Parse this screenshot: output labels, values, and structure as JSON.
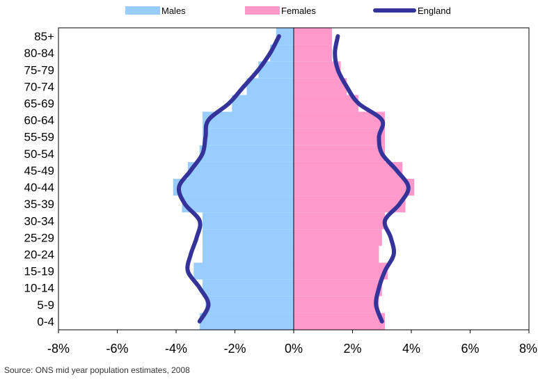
{
  "chart_data": {
    "type": "bar",
    "orientation": "horizontal",
    "categories": [
      "0-4",
      "5-9",
      "10-14",
      "15-19",
      "20-24",
      "25-29",
      "30-34",
      "35-39",
      "40-44",
      "45-49",
      "50-54",
      "55-59",
      "60-64",
      "65-69",
      "70-74",
      "75-79",
      "80-84",
      "85+"
    ],
    "series": [
      {
        "name": "Males",
        "type": "bar",
        "color": "#99ccff",
        "values": [
          -3.2,
          -3.0,
          -3.1,
          -3.4,
          -3.1,
          -3.1,
          -3.1,
          -3.8,
          -4.1,
          -3.6,
          -3.2,
          -3.1,
          -3.1,
          -2.1,
          -1.6,
          -1.2,
          -0.8,
          -0.6
        ]
      },
      {
        "name": "Females",
        "type": "bar",
        "color": "#ff99cc",
        "values": [
          3.1,
          2.9,
          3.0,
          3.2,
          2.9,
          3.0,
          3.1,
          3.8,
          4.1,
          3.7,
          3.1,
          3.1,
          3.1,
          2.2,
          1.8,
          1.6,
          1.3,
          1.3
        ]
      },
      {
        "name": "England",
        "type": "line",
        "color": "#333399",
        "males": [
          -3.2,
          -2.9,
          -3.2,
          -3.6,
          -3.5,
          -3.3,
          -3.2,
          -3.7,
          -3.9,
          -3.5,
          -3.1,
          -3.0,
          -2.9,
          -2.2,
          -1.7,
          -1.2,
          -0.8,
          -0.5
        ],
        "females": [
          3.0,
          2.8,
          2.9,
          3.1,
          3.4,
          3.3,
          3.1,
          3.6,
          3.9,
          3.5,
          3.0,
          2.9,
          3.0,
          2.2,
          1.8,
          1.5,
          1.4,
          1.5
        ]
      }
    ],
    "xlim": [
      -8,
      8
    ],
    "xticks": [
      -8,
      -6,
      -4,
      -2,
      0,
      2,
      4,
      6,
      8
    ],
    "xtick_labels": [
      "-8%",
      "-6%",
      "-4%",
      "-2%",
      "0%",
      "2%",
      "4%",
      "6%",
      "8%"
    ],
    "grid": false,
    "legend_position": "top"
  },
  "legend": {
    "males_label": "Males",
    "females_label": "Females",
    "england_label": "England"
  },
  "source": "Source: ONS mid year population estimates, 2008",
  "colors": {
    "males": "#99ccff",
    "females": "#ff99cc",
    "england": "#333399"
  }
}
